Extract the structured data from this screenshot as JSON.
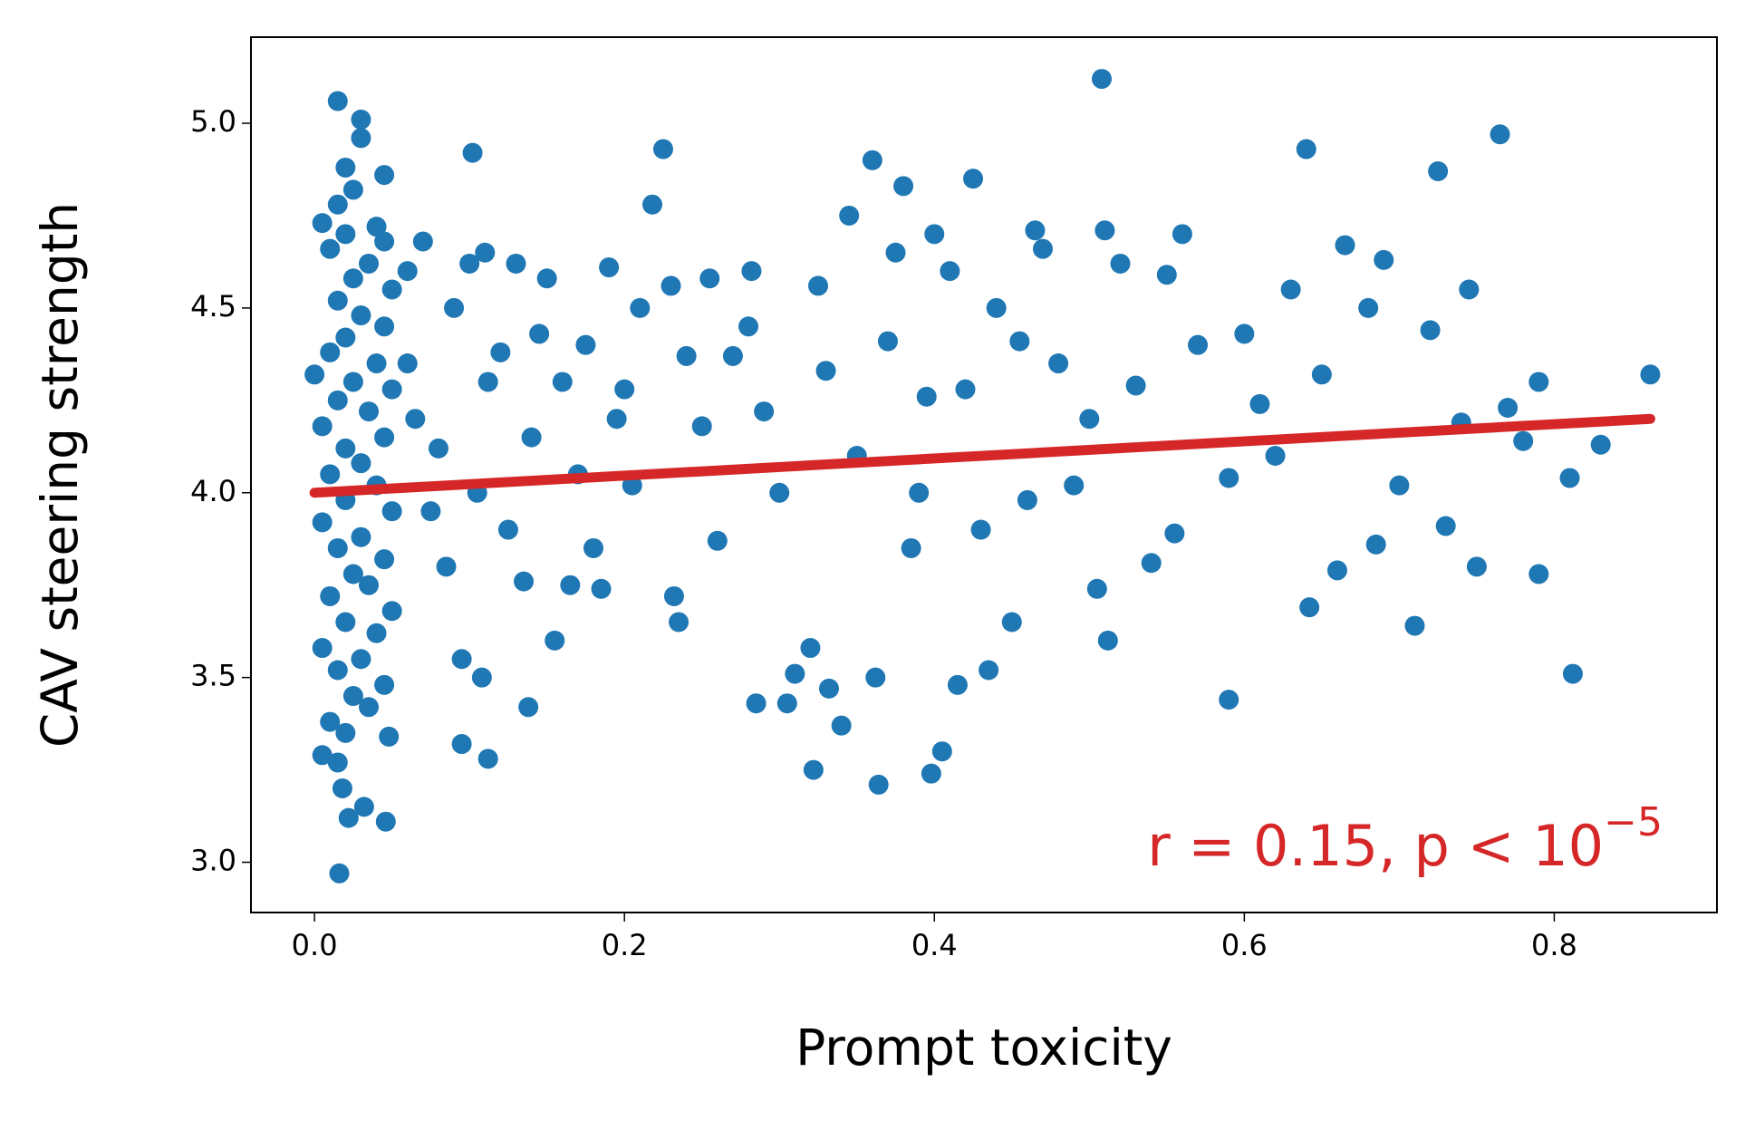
{
  "chart_data": {
    "type": "scatter",
    "x_label": "Prompt toxicity",
    "y_label": "CAV steering strength",
    "annotation": {
      "text": "r = 0.15, p < 10",
      "superscript": "−5",
      "color": "#d62728"
    },
    "xlim": [
      -0.041,
      0.905
    ],
    "ylim": [
      2.864,
      5.233
    ],
    "xticks": [
      {
        "value": 0,
        "label": "0.0"
      },
      0.2,
      0.4,
      0.6,
      0.8
    ],
    "yticks": [
      {
        "value": 3,
        "label": "3.0"
      },
      3.5,
      {
        "value": 4,
        "label": "4.0"
      },
      4.5,
      {
        "value": 5,
        "label": "5.0"
      }
    ],
    "color": "#1f77b4",
    "x": [
      0.015,
      0.03,
      0.03,
      0.02,
      0.045,
      0.025,
      0.015,
      0.005,
      0.04,
      0.02,
      0.045,
      0.01,
      0.035,
      0.025,
      0.06,
      0.05,
      0.015,
      0.03,
      0.045,
      0.02,
      0.01,
      0.04,
      0.0,
      0.025,
      0.05,
      0.015,
      0.035,
      0.005,
      0.045,
      0.02,
      0.03,
      0.01,
      0.04,
      0.02,
      0.05,
      0.005,
      0.03,
      0.015,
      0.045,
      0.025,
      0.035,
      0.01,
      0.05,
      0.02,
      0.04,
      0.005,
      0.03,
      0.015,
      0.045,
      0.025,
      0.035,
      0.01,
      0.02,
      0.048,
      0.005,
      0.015,
      0.018,
      0.032,
      0.022,
      0.046,
      0.016,
      0.06,
      0.07,
      0.065,
      0.075,
      0.08,
      0.085,
      0.09,
      0.095,
      0.1,
      0.102,
      0.11,
      0.112,
      0.105,
      0.108,
      0.095,
      0.112,
      0.12,
      0.125,
      0.13,
      0.135,
      0.138,
      0.14,
      0.145,
      0.15,
      0.155,
      0.16,
      0.165,
      0.17,
      0.175,
      0.18,
      0.185,
      0.19,
      0.195,
      0.2,
      0.205,
      0.21,
      0.218,
      0.225,
      0.23,
      0.232,
      0.235,
      0.24,
      0.25,
      0.255,
      0.26,
      0.27,
      0.28,
      0.282,
      0.285,
      0.29,
      0.3,
      0.305,
      0.31,
      0.32,
      0.322,
      0.325,
      0.33,
      0.332,
      0.34,
      0.345,
      0.35,
      0.36,
      0.362,
      0.364,
      0.37,
      0.375,
      0.38,
      0.385,
      0.39,
      0.395,
      0.398,
      0.4,
      0.405,
      0.41,
      0.415,
      0.42,
      0.425,
      0.43,
      0.435,
      0.44,
      0.45,
      0.455,
      0.46,
      0.465,
      0.47,
      0.48,
      0.49,
      0.5,
      0.505,
      0.508,
      0.51,
      0.512,
      0.52,
      0.53,
      0.54,
      0.55,
      0.555,
      0.56,
      0.57,
      0.59,
      0.59,
      0.6,
      0.61,
      0.62,
      0.63,
      0.64,
      0.642,
      0.65,
      0.66,
      0.665,
      0.68,
      0.685,
      0.69,
      0.7,
      0.71,
      0.72,
      0.725,
      0.73,
      0.74,
      0.745,
      0.75,
      0.765,
      0.77,
      0.78,
      0.79,
      0.79,
      0.81,
      0.812,
      0.83,
      0.862
    ],
    "y": [
      5.06,
      5.01,
      4.96,
      4.88,
      4.86,
      4.82,
      4.78,
      4.73,
      4.72,
      4.7,
      4.68,
      4.66,
      4.62,
      4.58,
      4.6,
      4.55,
      4.52,
      4.48,
      4.45,
      4.42,
      4.38,
      4.35,
      4.32,
      4.3,
      4.28,
      4.25,
      4.22,
      4.18,
      4.15,
      4.12,
      4.08,
      4.05,
      4.02,
      3.98,
      3.95,
      3.92,
      3.88,
      3.85,
      3.82,
      3.78,
      3.75,
      3.72,
      3.68,
      3.65,
      3.62,
      3.58,
      3.55,
      3.52,
      3.48,
      3.45,
      3.42,
      3.38,
      3.35,
      3.34,
      3.29,
      3.27,
      3.2,
      3.15,
      3.12,
      3.11,
      2.97,
      4.35,
      4.68,
      4.2,
      3.95,
      4.12,
      3.8,
      4.5,
      3.55,
      4.62,
      4.92,
      4.65,
      4.3,
      4.0,
      3.5,
      3.32,
      3.28,
      4.38,
      3.9,
      4.62,
      3.76,
      3.42,
      4.15,
      4.43,
      4.58,
      3.6,
      4.3,
      3.75,
      4.05,
      4.4,
      3.85,
      3.74,
      4.61,
      4.2,
      4.28,
      4.02,
      4.5,
      4.78,
      4.93,
      4.56,
      3.72,
      3.65,
      4.37,
      4.18,
      4.58,
      3.87,
      4.37,
      4.45,
      4.6,
      3.43,
      4.22,
      4.0,
      3.43,
      3.51,
      3.58,
      3.25,
      4.56,
      4.33,
      3.47,
      3.37,
      4.75,
      4.1,
      4.9,
      3.5,
      3.21,
      4.41,
      4.65,
      4.83,
      3.85,
      4.0,
      4.26,
      3.24,
      4.7,
      3.3,
      4.6,
      3.48,
      4.28,
      4.85,
      3.9,
      3.52,
      4.5,
      3.65,
      4.41,
      3.98,
      4.71,
      4.66,
      4.35,
      4.02,
      4.2,
      3.74,
      5.12,
      4.71,
      3.6,
      4.62,
      4.29,
      3.81,
      4.59,
      3.89,
      4.7,
      4.4,
      3.44,
      4.04,
      4.43,
      4.24,
      4.1,
      4.55,
      4.93,
      3.69,
      4.32,
      3.79,
      4.67,
      4.5,
      3.86,
      4.63,
      4.02,
      3.64,
      4.44,
      4.87,
      3.91,
      4.19,
      4.55,
      3.8,
      4.97,
      4.23,
      4.14,
      3.78,
      4.3,
      4.04,
      3.51,
      4.13,
      4.32
    ],
    "fit": {
      "x": [
        0,
        0.862
      ],
      "y": [
        4.0,
        4.2
      ],
      "color": "#d62728"
    }
  }
}
